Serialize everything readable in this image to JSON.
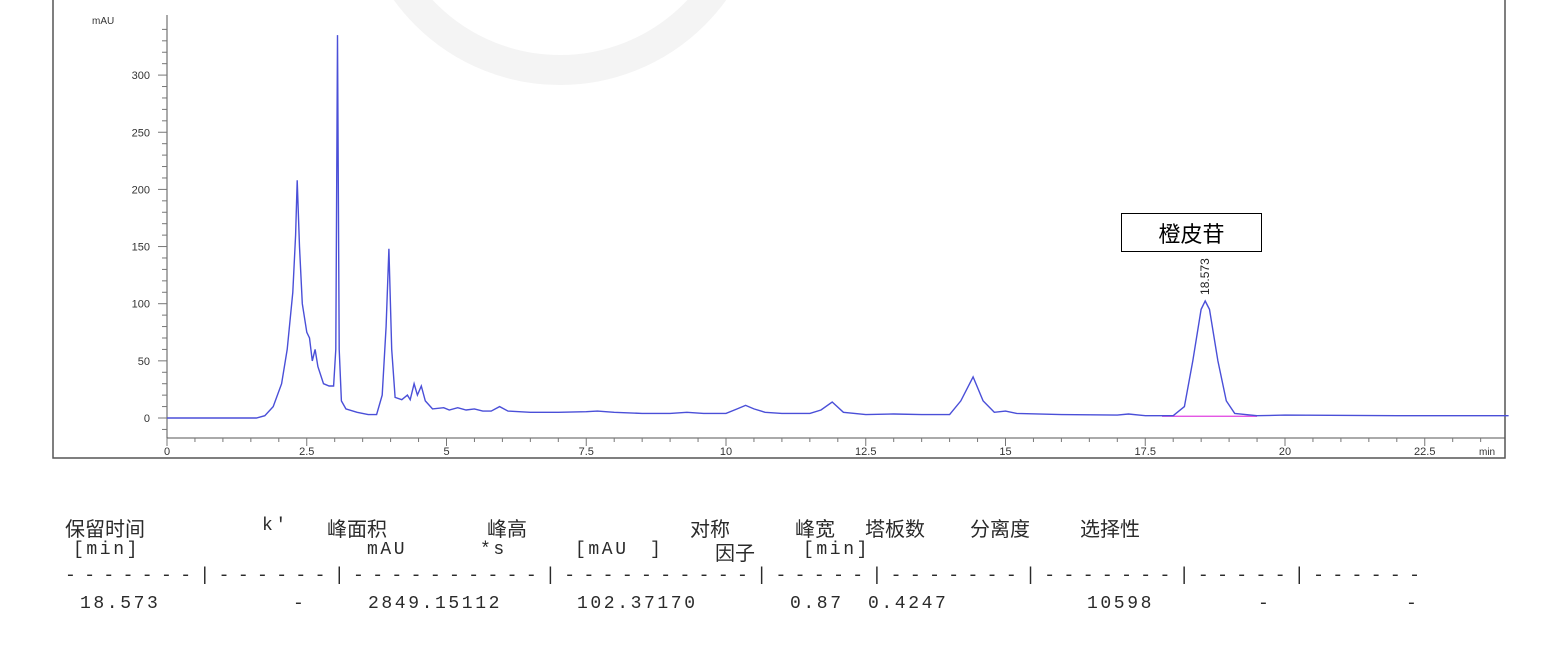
{
  "chart_data": {
    "type": "line",
    "title": "",
    "ylabel": "mAU",
    "xlabel": "min",
    "xlim": [
      0,
      24
    ],
    "ylim": [
      -20,
      350
    ],
    "x_ticks": [
      "0",
      "2.5",
      "5",
      "7.5",
      "10",
      "12.5",
      "15",
      "17.5",
      "20",
      "22.5"
    ],
    "x_tick_values": [
      0,
      2.5,
      5,
      7.5,
      10,
      12.5,
      15,
      17.5,
      20,
      22.5
    ],
    "y_ticks": [
      "0",
      "50",
      "100",
      "150",
      "200",
      "250",
      "300"
    ],
    "y_tick_values": [
      0,
      50,
      100,
      150,
      200,
      250,
      300
    ],
    "grid": false,
    "line_color": "#4a4fd8",
    "integration_baseline_color": "#e040e0",
    "integration_baseline": [
      [
        17.8,
        1.5
      ],
      [
        19.5,
        1.5
      ]
    ],
    "peak_label": {
      "x": 18.573,
      "y": 102.4,
      "text": "18.573"
    },
    "annotation": "橙皮苷",
    "series": [
      {
        "points": [
          [
            0,
            0
          ],
          [
            1.6,
            0
          ],
          [
            1.75,
            2
          ],
          [
            1.9,
            10
          ],
          [
            2.05,
            30
          ],
          [
            2.15,
            60
          ],
          [
            2.25,
            110
          ],
          [
            2.3,
            160
          ],
          [
            2.33,
            208
          ],
          [
            2.37,
            150
          ],
          [
            2.42,
            100
          ],
          [
            2.5,
            75
          ],
          [
            2.55,
            70
          ],
          [
            2.6,
            50
          ],
          [
            2.65,
            60
          ],
          [
            2.7,
            45
          ],
          [
            2.8,
            30
          ],
          [
            2.9,
            28
          ],
          [
            2.98,
            28
          ],
          [
            3.02,
            60
          ],
          [
            3.05,
            335
          ],
          [
            3.08,
            60
          ],
          [
            3.12,
            15
          ],
          [
            3.2,
            8
          ],
          [
            3.4,
            5
          ],
          [
            3.6,
            3
          ],
          [
            3.75,
            3
          ],
          [
            3.85,
            20
          ],
          [
            3.92,
            80
          ],
          [
            3.97,
            148
          ],
          [
            4.02,
            60
          ],
          [
            4.08,
            18
          ],
          [
            4.2,
            16
          ],
          [
            4.3,
            20
          ],
          [
            4.35,
            16
          ],
          [
            4.42,
            30
          ],
          [
            4.48,
            20
          ],
          [
            4.55,
            28
          ],
          [
            4.62,
            15
          ],
          [
            4.75,
            8
          ],
          [
            4.95,
            9
          ],
          [
            5.05,
            7
          ],
          [
            5.2,
            9
          ],
          [
            5.35,
            7
          ],
          [
            5.5,
            8
          ],
          [
            5.65,
            6
          ],
          [
            5.8,
            6
          ],
          [
            5.95,
            10
          ],
          [
            6.1,
            6
          ],
          [
            6.5,
            5
          ],
          [
            7,
            5
          ],
          [
            7.5,
            5.5
          ],
          [
            7.7,
            6
          ],
          [
            8,
            5
          ],
          [
            8.5,
            4
          ],
          [
            9,
            4
          ],
          [
            9.3,
            5
          ],
          [
            9.6,
            4
          ],
          [
            10,
            4
          ],
          [
            10.2,
            8
          ],
          [
            10.35,
            11
          ],
          [
            10.5,
            8
          ],
          [
            10.7,
            5
          ],
          [
            11,
            4
          ],
          [
            11.5,
            4
          ],
          [
            11.7,
            7
          ],
          [
            11.9,
            14
          ],
          [
            12.1,
            5
          ],
          [
            12.5,
            3
          ],
          [
            13,
            3.5
          ],
          [
            13.5,
            3
          ],
          [
            14,
            3
          ],
          [
            14.2,
            15
          ],
          [
            14.42,
            36
          ],
          [
            14.6,
            15
          ],
          [
            14.8,
            5
          ],
          [
            15,
            6
          ],
          [
            15.2,
            4
          ],
          [
            16,
            3
          ],
          [
            17,
            2.5
          ],
          [
            17.2,
            3.5
          ],
          [
            17.5,
            2
          ],
          [
            18,
            2
          ],
          [
            18.2,
            10
          ],
          [
            18.35,
            50
          ],
          [
            18.5,
            95
          ],
          [
            18.573,
            102.4
          ],
          [
            18.65,
            95
          ],
          [
            18.8,
            50
          ],
          [
            18.95,
            15
          ],
          [
            19.1,
            4
          ],
          [
            19.5,
            2
          ],
          [
            20,
            2.5
          ],
          [
            22,
            2
          ],
          [
            24,
            2
          ]
        ]
      }
    ]
  },
  "table": {
    "header1": [
      "保留时间",
      "k'",
      "峰面积",
      "峰高",
      "对称",
      "峰宽",
      "塔板数",
      "分离度",
      "选择性"
    ],
    "header2": [
      "[min]",
      "mAU",
      "*s",
      "[mAU",
      "]",
      "因子",
      "[min]"
    ],
    "separator": "-------|------|----------|----------|-----|-------|-------|-----|------",
    "row": [
      "18.573",
      "-",
      "2849.15112",
      "102.37170",
      "0.87",
      "0.4247",
      "10598",
      "-",
      "-"
    ]
  }
}
